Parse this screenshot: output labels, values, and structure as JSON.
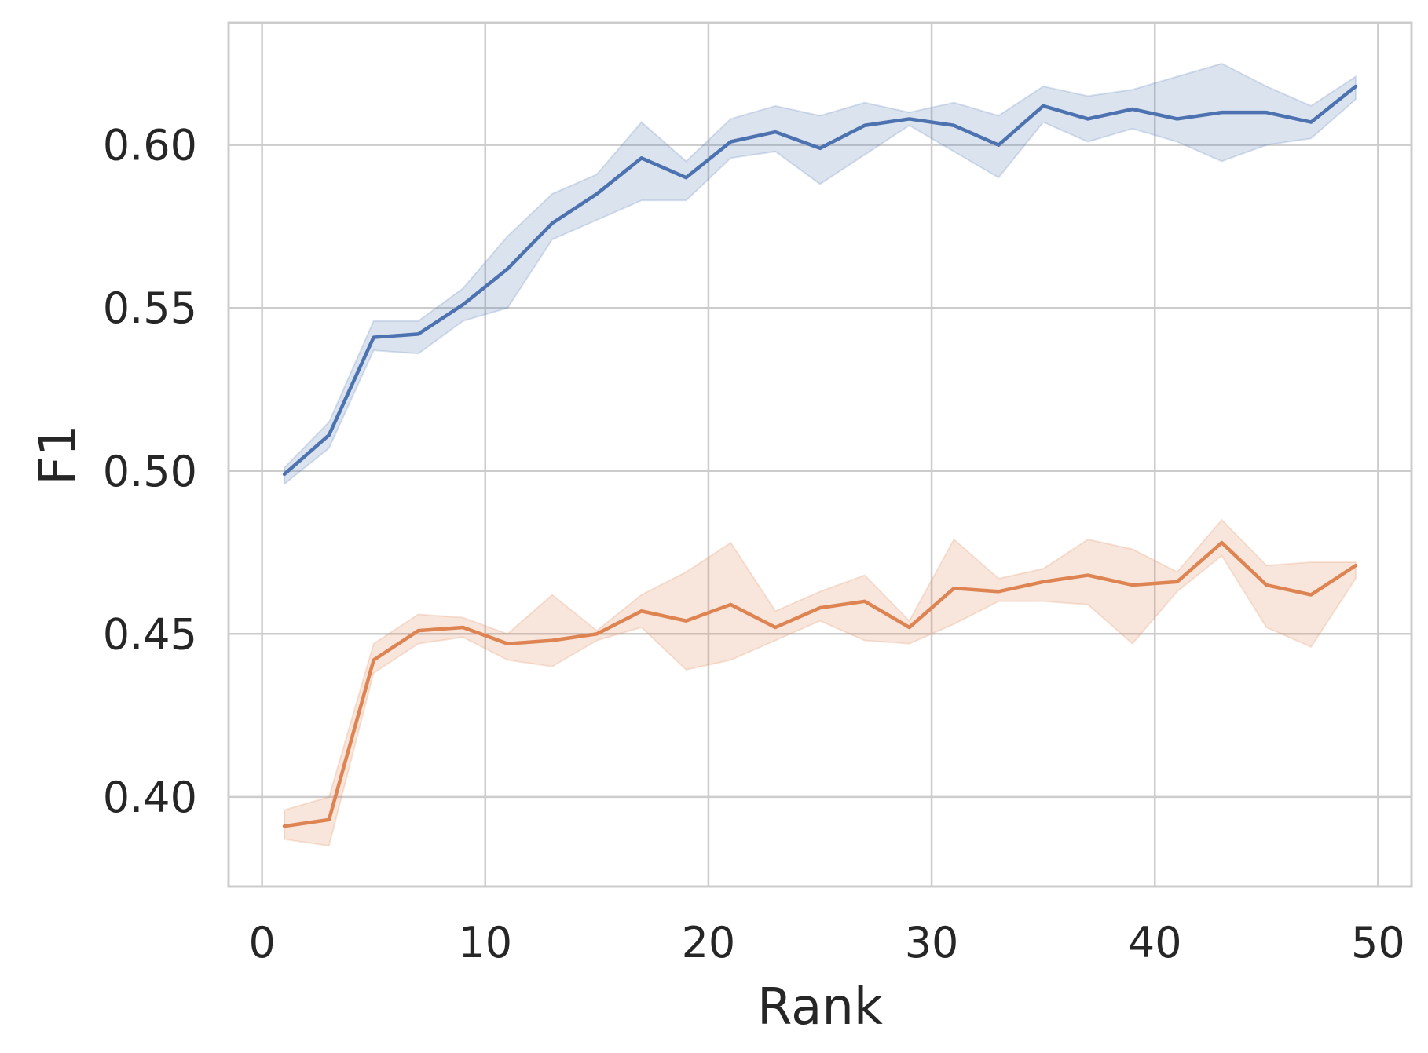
{
  "chart_data": {
    "type": "line",
    "xlabel": "Rank",
    "ylabel": "F1",
    "xlim": [
      -1.5,
      51.5
    ],
    "ylim": [
      0.3725,
      0.6375
    ],
    "x_ticks": [
      0,
      10,
      20,
      30,
      40,
      50
    ],
    "y_ticks": [
      0.4,
      0.45,
      0.5,
      0.55,
      0.6
    ],
    "x_tick_labels": [
      "0",
      "10",
      "20",
      "30",
      "40",
      "50"
    ],
    "y_tick_labels": [
      "0.40",
      "0.45",
      "0.50",
      "0.55",
      "0.60"
    ],
    "grid": true,
    "legend": "none",
    "x": [
      1,
      3,
      5,
      7,
      9,
      11,
      13,
      15,
      17,
      19,
      21,
      23,
      25,
      27,
      29,
      31,
      33,
      35,
      37,
      39,
      41,
      43,
      45,
      47,
      49
    ],
    "series": [
      {
        "color": "#4c72b0",
        "values": [
          0.499,
          0.511,
          0.541,
          0.542,
          0.551,
          0.562,
          0.576,
          0.585,
          0.596,
          0.59,
          0.601,
          0.604,
          0.599,
          0.606,
          0.608,
          0.606,
          0.6,
          0.612,
          0.608,
          0.611,
          0.608,
          0.61,
          0.61,
          0.607,
          0.618
        ],
        "lower": [
          0.496,
          0.507,
          0.537,
          0.536,
          0.546,
          0.55,
          0.571,
          0.577,
          0.583,
          0.583,
          0.596,
          0.598,
          0.588,
          0.597,
          0.606,
          0.598,
          0.59,
          0.607,
          0.601,
          0.605,
          0.601,
          0.595,
          0.6,
          0.602,
          0.614
        ],
        "upper": [
          0.501,
          0.515,
          0.546,
          0.546,
          0.556,
          0.572,
          0.585,
          0.591,
          0.607,
          0.595,
          0.608,
          0.612,
          0.609,
          0.613,
          0.61,
          0.613,
          0.609,
          0.618,
          0.615,
          0.617,
          0.621,
          0.625,
          0.618,
          0.612,
          0.621
        ]
      },
      {
        "color": "#dd8452",
        "values": [
          0.391,
          0.393,
          0.442,
          0.451,
          0.452,
          0.447,
          0.448,
          0.45,
          0.457,
          0.454,
          0.459,
          0.452,
          0.458,
          0.46,
          0.452,
          0.464,
          0.463,
          0.466,
          0.468,
          0.465,
          0.466,
          0.478,
          0.465,
          0.462,
          0.471
        ],
        "lower": [
          0.387,
          0.385,
          0.438,
          0.447,
          0.449,
          0.442,
          0.44,
          0.448,
          0.452,
          0.439,
          0.442,
          0.448,
          0.454,
          0.448,
          0.447,
          0.453,
          0.46,
          0.46,
          0.459,
          0.447,
          0.463,
          0.474,
          0.452,
          0.446,
          0.467
        ],
        "upper": [
          0.396,
          0.4,
          0.447,
          0.456,
          0.455,
          0.45,
          0.462,
          0.451,
          0.462,
          0.469,
          0.478,
          0.457,
          0.463,
          0.468,
          0.454,
          0.479,
          0.467,
          0.47,
          0.479,
          0.476,
          0.469,
          0.485,
          0.471,
          0.472,
          0.472
        ]
      }
    ]
  }
}
